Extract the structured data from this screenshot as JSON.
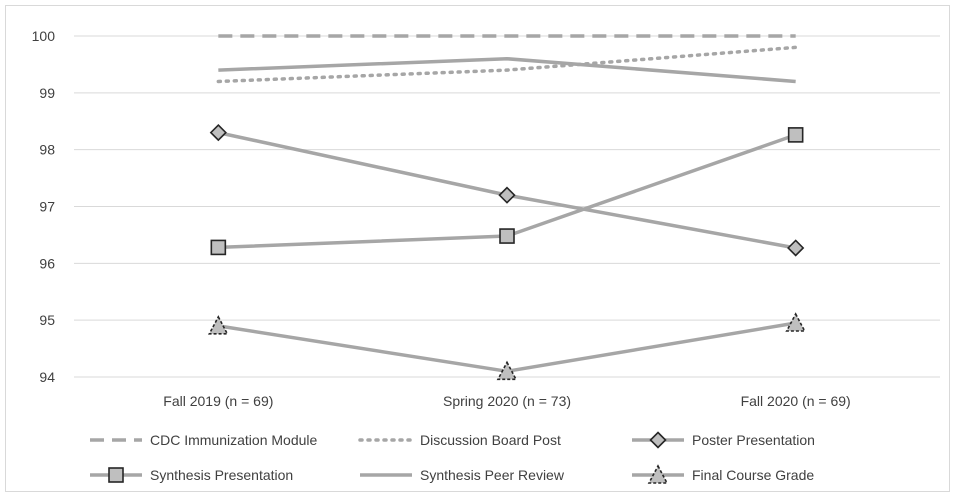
{
  "chart_data": {
    "type": "line",
    "categories": [
      "Fall 2019 (n = 69)",
      "Spring 2020 (n = 73)",
      "Fall 2020 (n = 69)"
    ],
    "ylim": [
      94,
      100
    ],
    "yticks": [
      "94",
      "95",
      "96",
      "97",
      "98",
      "99",
      "100"
    ],
    "grid": true,
    "legend_position": "bottom",
    "series": [
      {
        "name": "CDC Immunization Module",
        "values": [
          100,
          100,
          100
        ],
        "color": "#a6a6a6",
        "dash": "dashed",
        "marker": "none"
      },
      {
        "name": "Discussion Board Post",
        "values": [
          99.2,
          99.4,
          99.8
        ],
        "color": "#a6a6a6",
        "dash": "dotted",
        "marker": "none"
      },
      {
        "name": "Poster Presentation",
        "values": [
          98.3,
          97.2,
          96.27
        ],
        "color": "#a6a6a6",
        "dash": "solid",
        "marker": "diamond"
      },
      {
        "name": "Synthesis Presentation",
        "values": [
          96.28,
          96.48,
          98.26
        ],
        "color": "#a6a6a6",
        "dash": "solid",
        "marker": "square"
      },
      {
        "name": "Synthesis Peer Review",
        "values": [
          99.4,
          99.6,
          99.2
        ],
        "color": "#a6a6a6",
        "dash": "solid",
        "marker": "none"
      },
      {
        "name": "Final Course Grade",
        "values": [
          94.9,
          94.1,
          94.95
        ],
        "color": "#a6a6a6",
        "dash": "solid",
        "marker": "triangle"
      }
    ]
  }
}
